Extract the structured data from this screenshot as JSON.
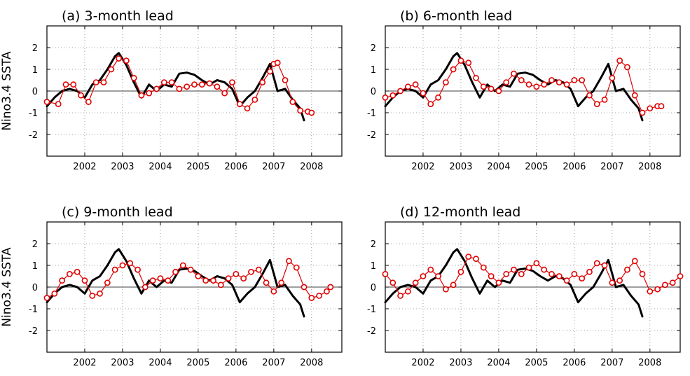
{
  "figure": {
    "ylabel": "Nino3.4  SSTA"
  },
  "chart_data": [
    {
      "type": "line",
      "title": "(a)  3-month lead",
      "ylabel": "Nino3.4  SSTA",
      "xlim": [
        2001.0,
        2008.8
      ],
      "ylim": [
        -3,
        3
      ],
      "yticks": [
        -2,
        -1,
        0,
        1,
        2
      ],
      "xticks": [
        2002,
        2003,
        2004,
        2005,
        2006,
        2007,
        2008
      ],
      "grid": true,
      "series": [
        {
          "style": "solid",
          "color": "#000000",
          "x": [
            2001.0,
            2001.2,
            2001.4,
            2001.6,
            2001.8,
            2002.0,
            2002.2,
            2002.4,
            2002.6,
            2002.8,
            2002.9,
            2003.1,
            2003.3,
            2003.5,
            2003.7,
            2003.9,
            2004.1,
            2004.3,
            2004.5,
            2004.7,
            2004.9,
            2005.1,
            2005.3,
            2005.5,
            2005.7,
            2005.9,
            2006.1,
            2006.3,
            2006.5,
            2006.7,
            2006.9,
            2007.1,
            2007.3,
            2007.5,
            2007.7,
            2007.8
          ],
          "y": [
            -0.7,
            -0.3,
            0.0,
            0.1,
            0.0,
            -0.3,
            0.3,
            0.5,
            1.0,
            1.6,
            1.75,
            1.2,
            0.4,
            -0.3,
            0.3,
            0.0,
            0.3,
            0.2,
            0.8,
            0.85,
            0.75,
            0.5,
            0.3,
            0.5,
            0.4,
            0.1,
            -0.7,
            -0.3,
            0.0,
            0.6,
            1.25,
            0.0,
            0.1,
            -0.4,
            -0.8,
            -1.35
          ]
        },
        {
          "style": "circles",
          "color": "#e00000",
          "x": [
            2001.0,
            2001.3,
            2001.5,
            2001.7,
            2001.9,
            2002.1,
            2002.3,
            2002.5,
            2002.7,
            2002.9,
            2003.1,
            2003.3,
            2003.5,
            2003.7,
            2003.9,
            2004.1,
            2004.3,
            2004.5,
            2004.7,
            2004.9,
            2005.1,
            2005.3,
            2005.5,
            2005.7,
            2005.9,
            2006.1,
            2006.3,
            2006.5,
            2006.7,
            2006.9,
            2007.0,
            2007.1,
            2007.3,
            2007.5,
            2007.7,
            2007.9,
            2008.0
          ],
          "y": [
            -0.5,
            -0.6,
            0.3,
            0.3,
            -0.2,
            -0.5,
            0.4,
            0.4,
            1.0,
            1.5,
            1.4,
            0.6,
            -0.2,
            -0.1,
            0.1,
            0.4,
            0.4,
            0.1,
            0.2,
            0.3,
            0.3,
            0.35,
            0.2,
            -0.1,
            0.4,
            -0.6,
            -0.8,
            -0.4,
            0.4,
            0.9,
            1.25,
            1.3,
            0.5,
            -0.5,
            -0.9,
            -0.95,
            -1.0
          ]
        }
      ]
    },
    {
      "type": "line",
      "title": "(b)  6-month lead",
      "xlim": [
        2001.0,
        2008.8
      ],
      "ylim": [
        -3,
        3
      ],
      "yticks": [
        -2,
        -1,
        0,
        1,
        2
      ],
      "xticks": [
        2002,
        2003,
        2004,
        2005,
        2006,
        2007,
        2008
      ],
      "grid": true,
      "series": [
        {
          "style": "solid",
          "color": "#000000",
          "x": [
            2001.0,
            2001.2,
            2001.4,
            2001.6,
            2001.8,
            2002.0,
            2002.2,
            2002.4,
            2002.6,
            2002.8,
            2002.9,
            2003.1,
            2003.3,
            2003.5,
            2003.7,
            2003.9,
            2004.1,
            2004.3,
            2004.5,
            2004.7,
            2004.9,
            2005.1,
            2005.3,
            2005.5,
            2005.7,
            2005.9,
            2006.1,
            2006.3,
            2006.5,
            2006.7,
            2006.9,
            2007.1,
            2007.3,
            2007.5,
            2007.7,
            2007.8
          ],
          "y": [
            -0.7,
            -0.3,
            0.0,
            0.1,
            0.0,
            -0.3,
            0.3,
            0.5,
            1.0,
            1.6,
            1.75,
            1.2,
            0.4,
            -0.3,
            0.3,
            0.0,
            0.3,
            0.2,
            0.8,
            0.85,
            0.75,
            0.5,
            0.3,
            0.5,
            0.4,
            0.1,
            -0.7,
            -0.3,
            0.0,
            0.6,
            1.25,
            0.0,
            0.1,
            -0.4,
            -0.8,
            -1.35
          ]
        },
        {
          "style": "circles",
          "color": "#e00000",
          "x": [
            2001.0,
            2001.2,
            2001.4,
            2001.6,
            2001.8,
            2002.0,
            2002.2,
            2002.4,
            2002.6,
            2002.8,
            2003.0,
            2003.2,
            2003.4,
            2003.6,
            2003.8,
            2004.0,
            2004.2,
            2004.4,
            2004.6,
            2004.8,
            2005.0,
            2005.2,
            2005.4,
            2005.6,
            2005.8,
            2006.0,
            2006.2,
            2006.4,
            2006.6,
            2006.8,
            2007.0,
            2007.2,
            2007.4,
            2007.6,
            2007.8,
            2008.0,
            2008.2,
            2008.3
          ],
          "y": [
            -0.3,
            -0.2,
            0.0,
            0.2,
            0.3,
            -0.1,
            -0.6,
            -0.3,
            0.4,
            1.0,
            1.4,
            1.3,
            0.6,
            0.2,
            0.1,
            0.0,
            0.4,
            0.8,
            0.5,
            0.3,
            0.2,
            0.3,
            0.5,
            0.4,
            0.3,
            0.5,
            0.5,
            -0.2,
            -0.6,
            -0.4,
            0.6,
            1.4,
            1.1,
            -0.2,
            -1.0,
            -0.8,
            -0.7,
            -0.7
          ]
        }
      ]
    },
    {
      "type": "line",
      "title": "(c)  9-month lead",
      "ylabel": "Nino3.4  SSTA",
      "xlim": [
        2001.0,
        2008.8
      ],
      "ylim": [
        -3,
        3
      ],
      "yticks": [
        -2,
        -1,
        0,
        1,
        2
      ],
      "xticks": [
        2002,
        2003,
        2004,
        2005,
        2006,
        2007,
        2008
      ],
      "grid": true,
      "series": [
        {
          "style": "solid",
          "color": "#000000",
          "x": [
            2001.0,
            2001.2,
            2001.4,
            2001.6,
            2001.8,
            2002.0,
            2002.2,
            2002.4,
            2002.6,
            2002.8,
            2002.9,
            2003.1,
            2003.3,
            2003.5,
            2003.7,
            2003.9,
            2004.1,
            2004.3,
            2004.5,
            2004.7,
            2004.9,
            2005.1,
            2005.3,
            2005.5,
            2005.7,
            2005.9,
            2006.1,
            2006.3,
            2006.5,
            2006.7,
            2006.9,
            2007.1,
            2007.3,
            2007.5,
            2007.7,
            2007.8
          ],
          "y": [
            -0.7,
            -0.3,
            0.0,
            0.1,
            0.0,
            -0.3,
            0.3,
            0.5,
            1.0,
            1.6,
            1.75,
            1.2,
            0.4,
            -0.3,
            0.3,
            0.0,
            0.3,
            0.2,
            0.8,
            0.85,
            0.75,
            0.5,
            0.3,
            0.5,
            0.4,
            0.1,
            -0.7,
            -0.3,
            0.0,
            0.6,
            1.25,
            0.0,
            0.1,
            -0.4,
            -0.8,
            -1.35
          ]
        },
        {
          "style": "circles",
          "color": "#e00000",
          "x": [
            2001.0,
            2001.2,
            2001.4,
            2001.6,
            2001.8,
            2002.0,
            2002.2,
            2002.4,
            2002.6,
            2002.8,
            2003.0,
            2003.2,
            2003.4,
            2003.6,
            2003.8,
            2004.0,
            2004.2,
            2004.4,
            2004.6,
            2004.8,
            2005.0,
            2005.2,
            2005.4,
            2005.6,
            2005.8,
            2006.0,
            2006.2,
            2006.4,
            2006.6,
            2006.8,
            2007.0,
            2007.2,
            2007.4,
            2007.6,
            2007.8,
            2008.0,
            2008.2,
            2008.4,
            2008.5
          ],
          "y": [
            -0.5,
            -0.3,
            0.3,
            0.6,
            0.7,
            0.3,
            -0.4,
            -0.3,
            0.2,
            0.8,
            1.0,
            1.1,
            0.8,
            0.0,
            0.3,
            0.4,
            0.3,
            0.7,
            1.0,
            0.8,
            0.5,
            0.3,
            0.3,
            0.1,
            0.4,
            0.6,
            0.4,
            0.7,
            0.8,
            0.2,
            -0.2,
            0.2,
            1.2,
            0.9,
            0.0,
            -0.5,
            -0.4,
            -0.2,
            0.0
          ]
        }
      ]
    },
    {
      "type": "line",
      "title": "(d)  12-month lead",
      "xlim": [
        2001.0,
        2008.8
      ],
      "ylim": [
        -3,
        3
      ],
      "yticks": [
        -2,
        -1,
        0,
        1,
        2
      ],
      "xticks": [
        2002,
        2003,
        2004,
        2005,
        2006,
        2007,
        2008
      ],
      "grid": true,
      "series": [
        {
          "style": "solid",
          "color": "#000000",
          "x": [
            2001.0,
            2001.2,
            2001.4,
            2001.6,
            2001.8,
            2002.0,
            2002.2,
            2002.4,
            2002.6,
            2002.8,
            2002.9,
            2003.1,
            2003.3,
            2003.5,
            2003.7,
            2003.9,
            2004.1,
            2004.3,
            2004.5,
            2004.7,
            2004.9,
            2005.1,
            2005.3,
            2005.5,
            2005.7,
            2005.9,
            2006.1,
            2006.3,
            2006.5,
            2006.7,
            2006.9,
            2007.1,
            2007.3,
            2007.5,
            2007.7,
            2007.8
          ],
          "y": [
            -0.7,
            -0.3,
            0.0,
            0.1,
            0.0,
            -0.3,
            0.3,
            0.5,
            1.0,
            1.6,
            1.75,
            1.2,
            0.4,
            -0.3,
            0.3,
            0.0,
            0.3,
            0.2,
            0.8,
            0.85,
            0.75,
            0.5,
            0.3,
            0.5,
            0.4,
            0.1,
            -0.7,
            -0.3,
            0.0,
            0.6,
            1.25,
            0.0,
            0.1,
            -0.4,
            -0.8,
            -1.35
          ]
        },
        {
          "style": "circles",
          "color": "#e00000",
          "x": [
            2001.0,
            2001.2,
            2001.4,
            2001.6,
            2001.8,
            2002.0,
            2002.2,
            2002.4,
            2002.6,
            2002.8,
            2003.0,
            2003.2,
            2003.4,
            2003.6,
            2003.8,
            2004.0,
            2004.2,
            2004.4,
            2004.6,
            2004.8,
            2005.0,
            2005.2,
            2005.4,
            2005.6,
            2005.8,
            2006.0,
            2006.2,
            2006.4,
            2006.6,
            2006.8,
            2007.0,
            2007.2,
            2007.4,
            2007.6,
            2007.8,
            2008.0,
            2008.2,
            2008.4,
            2008.6,
            2008.8
          ],
          "y": [
            0.6,
            0.2,
            -0.4,
            -0.2,
            0.2,
            0.5,
            0.8,
            0.5,
            -0.1,
            0.1,
            0.7,
            1.4,
            1.3,
            0.9,
            0.5,
            0.2,
            0.6,
            0.8,
            0.6,
            0.9,
            1.1,
            0.8,
            0.6,
            0.5,
            0.3,
            0.6,
            0.4,
            0.7,
            1.1,
            1.0,
            0.2,
            0.3,
            0.8,
            1.2,
            0.6,
            -0.2,
            -0.1,
            0.1,
            0.2,
            0.5
          ]
        }
      ]
    }
  ]
}
